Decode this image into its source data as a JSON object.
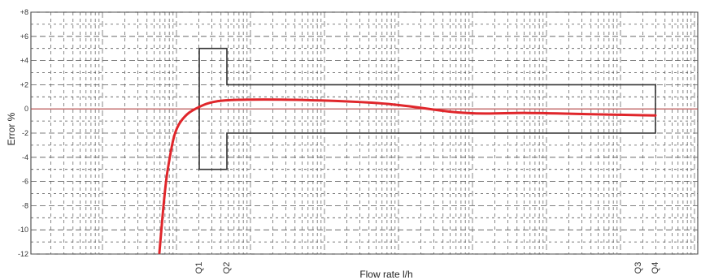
{
  "chart_data": {
    "type": "line",
    "xlabel": "Flow rate l/h",
    "ylabel": "Error %",
    "ylim": [
      -12,
      8
    ],
    "y_ticks": [
      "+8",
      "+6",
      "+4",
      "+2",
      "0",
      "-2",
      "-4",
      "-6",
      "-8",
      "-10",
      "-12"
    ],
    "x_scale": "log",
    "x_markers": [
      "Q1",
      "Q2",
      "Q3",
      "Q4"
    ],
    "grid": true,
    "colors": {
      "curve": "#e0262b",
      "limits": "#333333",
      "zero_line": "#b04040",
      "grid": "#555555"
    },
    "limits": {
      "lower_zone": {
        "from": "Q1",
        "to": "Q2",
        "upper": 5,
        "lower": -5
      },
      "upper_zone": {
        "from": "Q2",
        "to": "Q4",
        "upper": 2,
        "lower": -2
      }
    },
    "series": [
      {
        "color": "#e0262b",
        "points": [
          [
            0.0,
            -11.9
          ],
          [
            0.1,
            -6.2
          ],
          [
            0.18,
            -3.8
          ],
          [
            0.24,
            -2.3
          ],
          [
            0.3,
            -1.5
          ],
          [
            0.36,
            -1.0
          ],
          [
            0.43,
            -0.6
          ],
          [
            0.5,
            -0.28
          ],
          [
            0.6,
            0.0
          ],
          [
            0.7,
            0.25
          ],
          [
            0.8,
            0.45
          ],
          [
            0.9,
            0.58
          ],
          [
            1.0,
            0.66
          ],
          [
            1.15,
            0.72
          ],
          [
            1.35,
            0.76
          ],
          [
            1.6,
            0.78
          ],
          [
            1.9,
            0.78
          ],
          [
            2.2,
            0.76
          ],
          [
            2.55,
            0.72
          ],
          [
            2.95,
            0.66
          ],
          [
            3.35,
            0.58
          ],
          [
            3.75,
            0.45
          ],
          [
            4.1,
            0.27
          ],
          [
            4.4,
            0.08
          ],
          [
            4.7,
            -0.14
          ],
          [
            5.0,
            -0.3
          ],
          [
            5.3,
            -0.38
          ],
          [
            5.6,
            -0.38
          ],
          [
            5.95,
            -0.33
          ],
          [
            6.4,
            -0.34
          ],
          [
            6.9,
            -0.4
          ],
          [
            7.4,
            -0.46
          ],
          [
            7.9,
            -0.5
          ],
          [
            8.3,
            -0.54
          ]
        ]
      }
    ]
  }
}
